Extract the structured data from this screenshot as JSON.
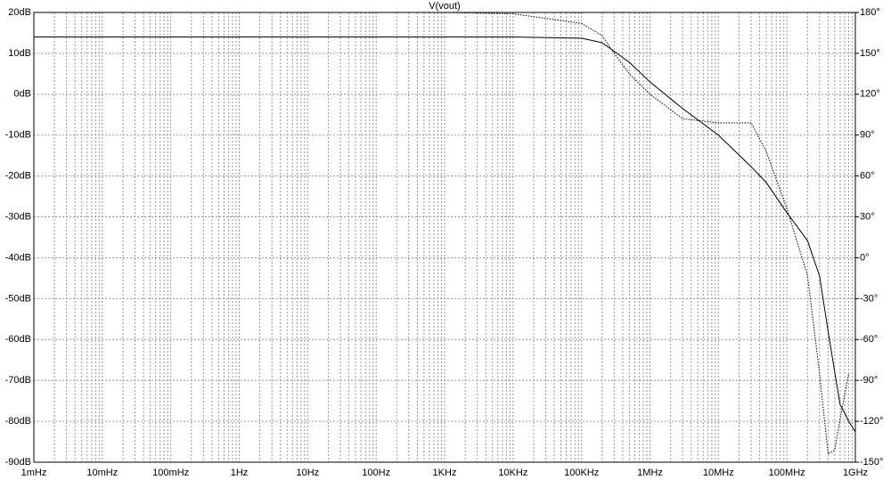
{
  "chart_data": {
    "type": "line",
    "title": "V(vout)",
    "x": [
      0.001,
      1000,
      10000,
      100000,
      200000,
      300000,
      500000,
      1000000,
      3000000,
      10000000,
      30000000,
      50000000,
      100000000,
      200000000,
      300000000,
      400000000,
      500000000,
      600000000,
      700000000,
      800000000,
      1000000000
    ],
    "series": [
      {
        "color": "#000000",
        "style": "solid",
        "axis": "y",
        "values": [
          14,
          14,
          14,
          13.7,
          12.6,
          10.5,
          7.8,
          3,
          -3.5,
          -10,
          -17.7,
          -21.6,
          -29,
          -35.8,
          -44.5,
          -58,
          -68,
          -76,
          -78,
          -80,
          -82.6
        ]
      },
      {
        "color": "#000000",
        "style": "dotted",
        "axis": "y2",
        "values": [
          180,
          180,
          179,
          172,
          163,
          150,
          135,
          120,
          102,
          99,
          99,
          78,
          36,
          -13,
          -85,
          -144,
          -141,
          -118,
          -100,
          -85,
          null
        ]
      }
    ],
    "xscale": "log",
    "xlim": [
      0.001,
      1000000000
    ],
    "xticks": [
      {
        "value": 0.001,
        "label": "1mHz"
      },
      {
        "value": 0.01,
        "label": "10mHz"
      },
      {
        "value": 0.1,
        "label": "100mHz"
      },
      {
        "value": 1,
        "label": "1Hz"
      },
      {
        "value": 10,
        "label": "10Hz"
      },
      {
        "value": 100,
        "label": "100Hz"
      },
      {
        "value": 1000,
        "label": "1KHz"
      },
      {
        "value": 10000,
        "label": "10KHz"
      },
      {
        "value": 100000,
        "label": "100KHz"
      },
      {
        "value": 1000000,
        "label": "1MHz"
      },
      {
        "value": 10000000,
        "label": "10MHz"
      },
      {
        "value": 100000000,
        "label": "100MHz"
      },
      {
        "value": 1000000000,
        "label": "1GHz"
      }
    ],
    "ylim": [
      -90,
      20
    ],
    "yticks": [
      {
        "value": 20,
        "label": "20dB"
      },
      {
        "value": 10,
        "label": "10dB"
      },
      {
        "value": 0,
        "label": "0dB"
      },
      {
        "value": -10,
        "label": "-10dB"
      },
      {
        "value": -20,
        "label": "-20dB"
      },
      {
        "value": -30,
        "label": "-30dB"
      },
      {
        "value": -40,
        "label": "-40dB"
      },
      {
        "value": -50,
        "label": "-50dB"
      },
      {
        "value": -60,
        "label": "-60dB"
      },
      {
        "value": -70,
        "label": "-70dB"
      },
      {
        "value": -80,
        "label": "-80dB"
      },
      {
        "value": -90,
        "label": "-90dB"
      }
    ],
    "y2lim": [
      -150,
      180
    ],
    "y2ticks": [
      {
        "value": 180,
        "label": "180°"
      },
      {
        "value": 150,
        "label": "150°"
      },
      {
        "value": 120,
        "label": "120°"
      },
      {
        "value": 90,
        "label": "90°"
      },
      {
        "value": 60,
        "label": "60°"
      },
      {
        "value": 30,
        "label": "30°"
      },
      {
        "value": 0,
        "label": "0°"
      },
      {
        "value": -30,
        "label": "-30°"
      },
      {
        "value": -60,
        "label": "-60°"
      },
      {
        "value": -90,
        "label": "-90°"
      },
      {
        "value": -120,
        "label": "-120°"
      },
      {
        "value": -150,
        "label": "-150°"
      }
    ],
    "grid": true
  }
}
